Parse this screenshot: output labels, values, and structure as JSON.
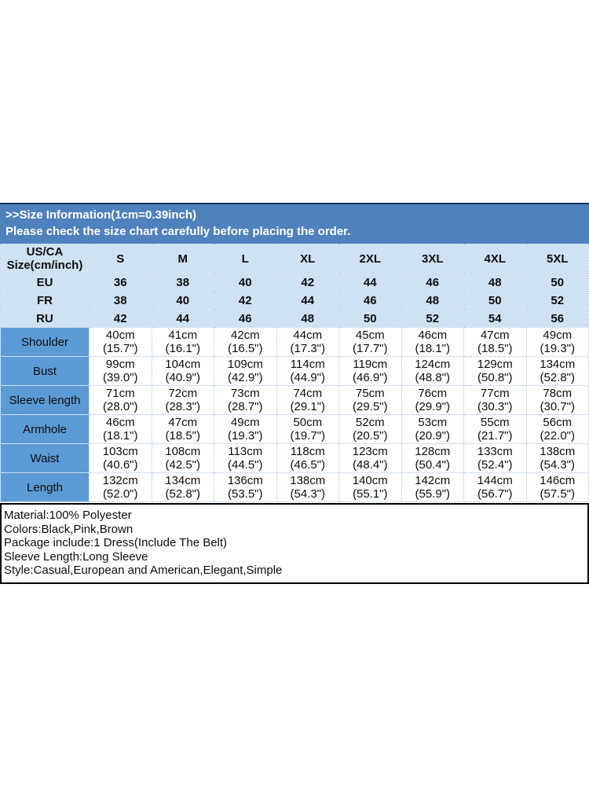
{
  "header": {
    "line1": ">>Size Information(1cm=0.39inch)",
    "line2": "Please check the size chart carefully before placing the order."
  },
  "table": {
    "corner": {
      "line1": "US/CA",
      "line2": "Size(cm/inch)"
    },
    "sizes": [
      "S",
      "M",
      "L",
      "XL",
      "2XL",
      "3XL",
      "4XL",
      "5XL"
    ],
    "region_rows": [
      {
        "label": "EU",
        "values": [
          "36",
          "38",
          "40",
          "42",
          "44",
          "46",
          "48",
          "50"
        ]
      },
      {
        "label": "FR",
        "values": [
          "38",
          "40",
          "42",
          "44",
          "46",
          "48",
          "50",
          "52"
        ]
      },
      {
        "label": "RU",
        "values": [
          "42",
          "44",
          "46",
          "48",
          "50",
          "52",
          "54",
          "56"
        ]
      }
    ],
    "measurement_rows": [
      {
        "label": "Shoulder",
        "cm": [
          "40cm",
          "41cm",
          "42cm",
          "44cm",
          "45cm",
          "46cm",
          "47cm",
          "49cm"
        ],
        "inch": [
          "(15.7\")",
          "(16.1\")",
          "(16.5\")",
          "(17.3\")",
          "(17.7\")",
          "(18.1\")",
          "(18.5\")",
          "(19.3\")"
        ]
      },
      {
        "label": "Bust",
        "cm": [
          "99cm",
          "104cm",
          "109cm",
          "114cm",
          "119cm",
          "124cm",
          "129cm",
          "134cm"
        ],
        "inch": [
          "(39.0\")",
          "(40.9\")",
          "(42.9\")",
          "(44.9\")",
          "(46.9\")",
          "(48.8\")",
          "(50.8\")",
          "(52.8\")"
        ]
      },
      {
        "label": "Sleeve length",
        "cm": [
          "71cm",
          "72cm",
          "73cm",
          "74cm",
          "75cm",
          "76cm",
          "77cm",
          "78cm"
        ],
        "inch": [
          "(28.0\")",
          "(28.3\")",
          "(28.7\")",
          "(29.1\")",
          "(29.5\")",
          "(29.9\")",
          "(30.3\")",
          "(30.7\")"
        ]
      },
      {
        "label": "Armhole",
        "cm": [
          "46cm",
          "47cm",
          "49cm",
          "50cm",
          "52cm",
          "53cm",
          "55cm",
          "56cm"
        ],
        "inch": [
          "(18.1\")",
          "(18.5\")",
          "(19.3\")",
          "(19.7\")",
          "(20.5\")",
          "(20.9\")",
          "(21.7\")",
          "(22.0\")"
        ]
      },
      {
        "label": "Waist",
        "cm": [
          "103cm",
          "108cm",
          "113cm",
          "118cm",
          "123cm",
          "128cm",
          "133cm",
          "138cm"
        ],
        "inch": [
          "(40.6\")",
          "(42.5\")",
          "(44.5\")",
          "(46.5\")",
          "(48.4\")",
          "(50.4\")",
          "(52.4\")",
          "(54.3\")"
        ]
      },
      {
        "label": "Length",
        "cm": [
          "132cm",
          "134cm",
          "136cm",
          "138cm",
          "140cm",
          "142cm",
          "144cm",
          "146cm"
        ],
        "inch": [
          "(52.0\")",
          "(52.8\")",
          "(53.5\")",
          "(54.3\")",
          "(55.1\")",
          "(55.9\")",
          "(56.7\")",
          "(57.5\")"
        ]
      }
    ]
  },
  "details": {
    "lines": [
      "Material:100% Polyester",
      "Colors:Black,Pink,Brown",
      "Package include:1 Dress(Include The Belt)",
      "Sleeve Length:Long Sleeve",
      "Style:Casual,European and American,Elegant,Simple"
    ]
  },
  "colors": {
    "header_band_blue": "#4f81bd",
    "label_column_blue": "#5b9bd5",
    "light_row_blue": "#cfe2f3",
    "top_rule_navy": "#17365d",
    "cell_border_blue": "#a3c1e0"
  }
}
